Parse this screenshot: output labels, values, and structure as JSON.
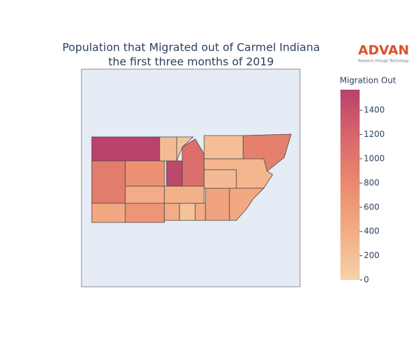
{
  "chart_data": {
    "type": "choropleth",
    "title": "Population that Migrated out of Carmel Indiana",
    "subtitle": "the first three months of 2019",
    "colorbar_title": "Migration Out",
    "zlim": [
      0,
      1570
    ],
    "zticks": [
      0,
      200,
      400,
      600,
      800,
      1000,
      1200,
      1400
    ],
    "colorscale": [
      "#f6d2a9",
      "#f3ad86",
      "#ea8a6e",
      "#d8686c",
      "#b8416b"
    ],
    "values": [
      1550,
      950,
      700,
      1500,
      1100,
      250,
      150,
      200,
      900,
      300,
      450,
      400,
      650,
      350,
      400,
      180,
      400,
      500,
      450,
      250
    ]
  },
  "logo": {
    "name": "ADVAN",
    "tagline": "Research through Technology"
  }
}
